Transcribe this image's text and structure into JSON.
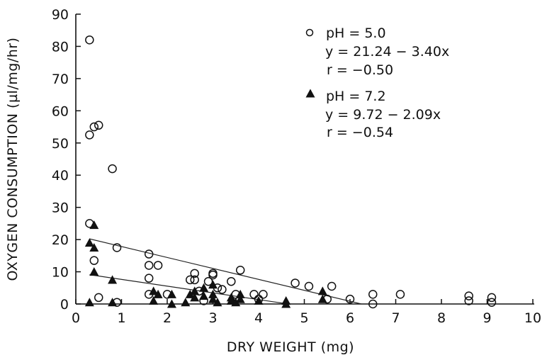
{
  "chart_data": {
    "type": "scatter",
    "xlabel": "DRY WEIGHT (mg)",
    "ylabel": "OXYGEN CONSUMPTION (µl/mg/hr)",
    "xlim": [
      0,
      10
    ],
    "ylim": [
      0,
      90
    ],
    "x_ticks": [
      0,
      1,
      2,
      3,
      4,
      5,
      6,
      7,
      8,
      9,
      10
    ],
    "y_ticks": [
      0,
      10,
      20,
      30,
      40,
      50,
      60,
      70,
      80,
      90
    ],
    "grid": false,
    "legend_position": "top-right",
    "series": [
      {
        "name": "pH = 5.0",
        "marker": "open-circle",
        "equation": "y = 21.24 − 3.40x",
        "r": "r = −0.50",
        "fit": {
          "intercept": 21.24,
          "slope": -3.4
        },
        "points": [
          [
            0.3,
            82
          ],
          [
            0.3,
            52.5
          ],
          [
            0.4,
            55
          ],
          [
            0.5,
            55.5
          ],
          [
            0.8,
            42
          ],
          [
            0.3,
            25
          ],
          [
            0.4,
            13.5
          ],
          [
            0.9,
            17.5
          ],
          [
            0.5,
            2
          ],
          [
            0.9,
            0.5
          ],
          [
            1.6,
            15.5
          ],
          [
            1.6,
            12
          ],
          [
            1.8,
            12
          ],
          [
            1.6,
            8
          ],
          [
            1.6,
            3
          ],
          [
            2.0,
            3
          ],
          [
            2.5,
            7.5
          ],
          [
            2.6,
            9.5
          ],
          [
            2.6,
            7.5
          ],
          [
            2.7,
            4
          ],
          [
            2.9,
            7
          ],
          [
            3.0,
            9.5
          ],
          [
            3.0,
            9
          ],
          [
            3.1,
            5
          ],
          [
            3.2,
            4.5
          ],
          [
            3.4,
            7
          ],
          [
            3.5,
            3
          ],
          [
            3.6,
            10.5
          ],
          [
            3.9,
            3
          ],
          [
            4.1,
            3
          ],
          [
            4.0,
            1.5
          ],
          [
            2.8,
            1
          ],
          [
            4.8,
            6.5
          ],
          [
            5.1,
            5.5
          ],
          [
            5.6,
            5.5
          ],
          [
            5.5,
            1.5
          ],
          [
            6.0,
            1.5
          ],
          [
            6.5,
            3
          ],
          [
            6.5,
            0
          ],
          [
            7.1,
            3
          ],
          [
            8.6,
            2.5
          ],
          [
            8.6,
            1
          ],
          [
            9.1,
            2
          ],
          [
            9.1,
            0.5
          ]
        ]
      },
      {
        "name": "pH = 7.2",
        "marker": "filled-triangle",
        "equation": "y = 9.72 − 2.09x",
        "r": "r = −0.54",
        "fit": {
          "intercept": 9.72,
          "slope": -2.09
        },
        "points": [
          [
            0.3,
            19
          ],
          [
            0.4,
            24.5
          ],
          [
            0.4,
            17.5
          ],
          [
            0.4,
            10
          ],
          [
            0.8,
            7.5
          ],
          [
            0.3,
            0.5
          ],
          [
            0.8,
            0.5
          ],
          [
            1.7,
            4
          ],
          [
            1.8,
            3
          ],
          [
            1.7,
            1
          ],
          [
            2.1,
            3
          ],
          [
            2.1,
            0
          ],
          [
            2.4,
            0.5
          ],
          [
            2.5,
            3
          ],
          [
            2.6,
            4
          ],
          [
            2.6,
            2
          ],
          [
            2.8,
            5
          ],
          [
            2.8,
            2.5
          ],
          [
            3.0,
            6
          ],
          [
            3.0,
            3
          ],
          [
            3.0,
            1.5
          ],
          [
            3.1,
            0.5
          ],
          [
            3.4,
            2
          ],
          [
            3.4,
            1
          ],
          [
            3.5,
            0.5
          ],
          [
            3.6,
            3
          ],
          [
            3.6,
            1.5
          ],
          [
            4.0,
            1
          ],
          [
            4.6,
            1
          ],
          [
            4.6,
            0
          ],
          [
            5.4,
            4
          ],
          [
            5.4,
            1.5
          ]
        ]
      }
    ]
  }
}
